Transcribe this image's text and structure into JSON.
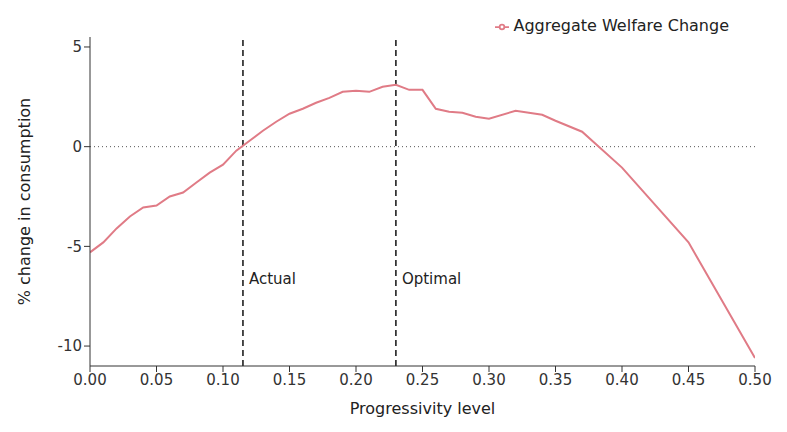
{
  "chart_data": {
    "type": "line",
    "xlabel": "Progressivity level",
    "ylabel": "% change in consumption",
    "x": [
      0,
      0.01,
      0.02,
      0.03,
      0.04,
      0.05,
      0.06,
      0.07,
      0.08,
      0.09,
      0.1,
      0.11,
      0.12,
      0.13,
      0.14,
      0.15,
      0.16,
      0.17,
      0.18,
      0.19,
      0.2,
      0.21,
      0.22,
      0.23,
      0.24,
      0.25,
      0.26,
      0.27,
      0.28,
      0.29,
      0.3,
      0.32,
      0.34,
      0.35,
      0.37,
      0.4,
      0.45,
      0.5
    ],
    "series": [
      {
        "name": "Aggregate Welfare Change",
        "color": "#e07b86",
        "values": [
          -5.3,
          -4.8,
          -4.1,
          -3.5,
          -3.05,
          -2.95,
          -2.5,
          -2.3,
          -1.8,
          -1.3,
          -0.9,
          -0.2,
          0.3,
          0.8,
          1.25,
          1.65,
          1.9,
          2.2,
          2.45,
          2.75,
          2.8,
          2.75,
          3.0,
          3.1,
          2.85,
          2.85,
          1.9,
          1.75,
          1.7,
          1.5,
          1.4,
          1.8,
          1.6,
          1.3,
          0.75,
          -1.05,
          -4.8,
          -10.6
        ]
      }
    ],
    "xlim": [
      0,
      0.5
    ],
    "xticks": [
      {
        "value": 0,
        "label": "0.00"
      },
      {
        "value": 0.05,
        "label": "0.05"
      },
      {
        "value": 0.1,
        "label": "0.10"
      },
      {
        "value": 0.15,
        "label": "0.15"
      },
      {
        "value": 0.2,
        "label": "0.20"
      },
      {
        "value": 0.25,
        "label": "0.25"
      },
      {
        "value": 0.3,
        "label": "0.30"
      },
      {
        "value": 0.35,
        "label": "0.35"
      },
      {
        "value": 0.4,
        "label": "0.40"
      },
      {
        "value": 0.45,
        "label": "0.45"
      },
      {
        "value": 0.5,
        "label": "0.50"
      }
    ],
    "ylim": [
      -11,
      5.5
    ],
    "yticks": [
      -10,
      -5,
      0,
      5
    ],
    "vlines": [
      {
        "x": 0.115,
        "label": "Actual"
      },
      {
        "x": 0.23,
        "label": "Optimal"
      }
    ],
    "hlines": [
      0
    ],
    "legend": "top-right",
    "grid": false
  }
}
